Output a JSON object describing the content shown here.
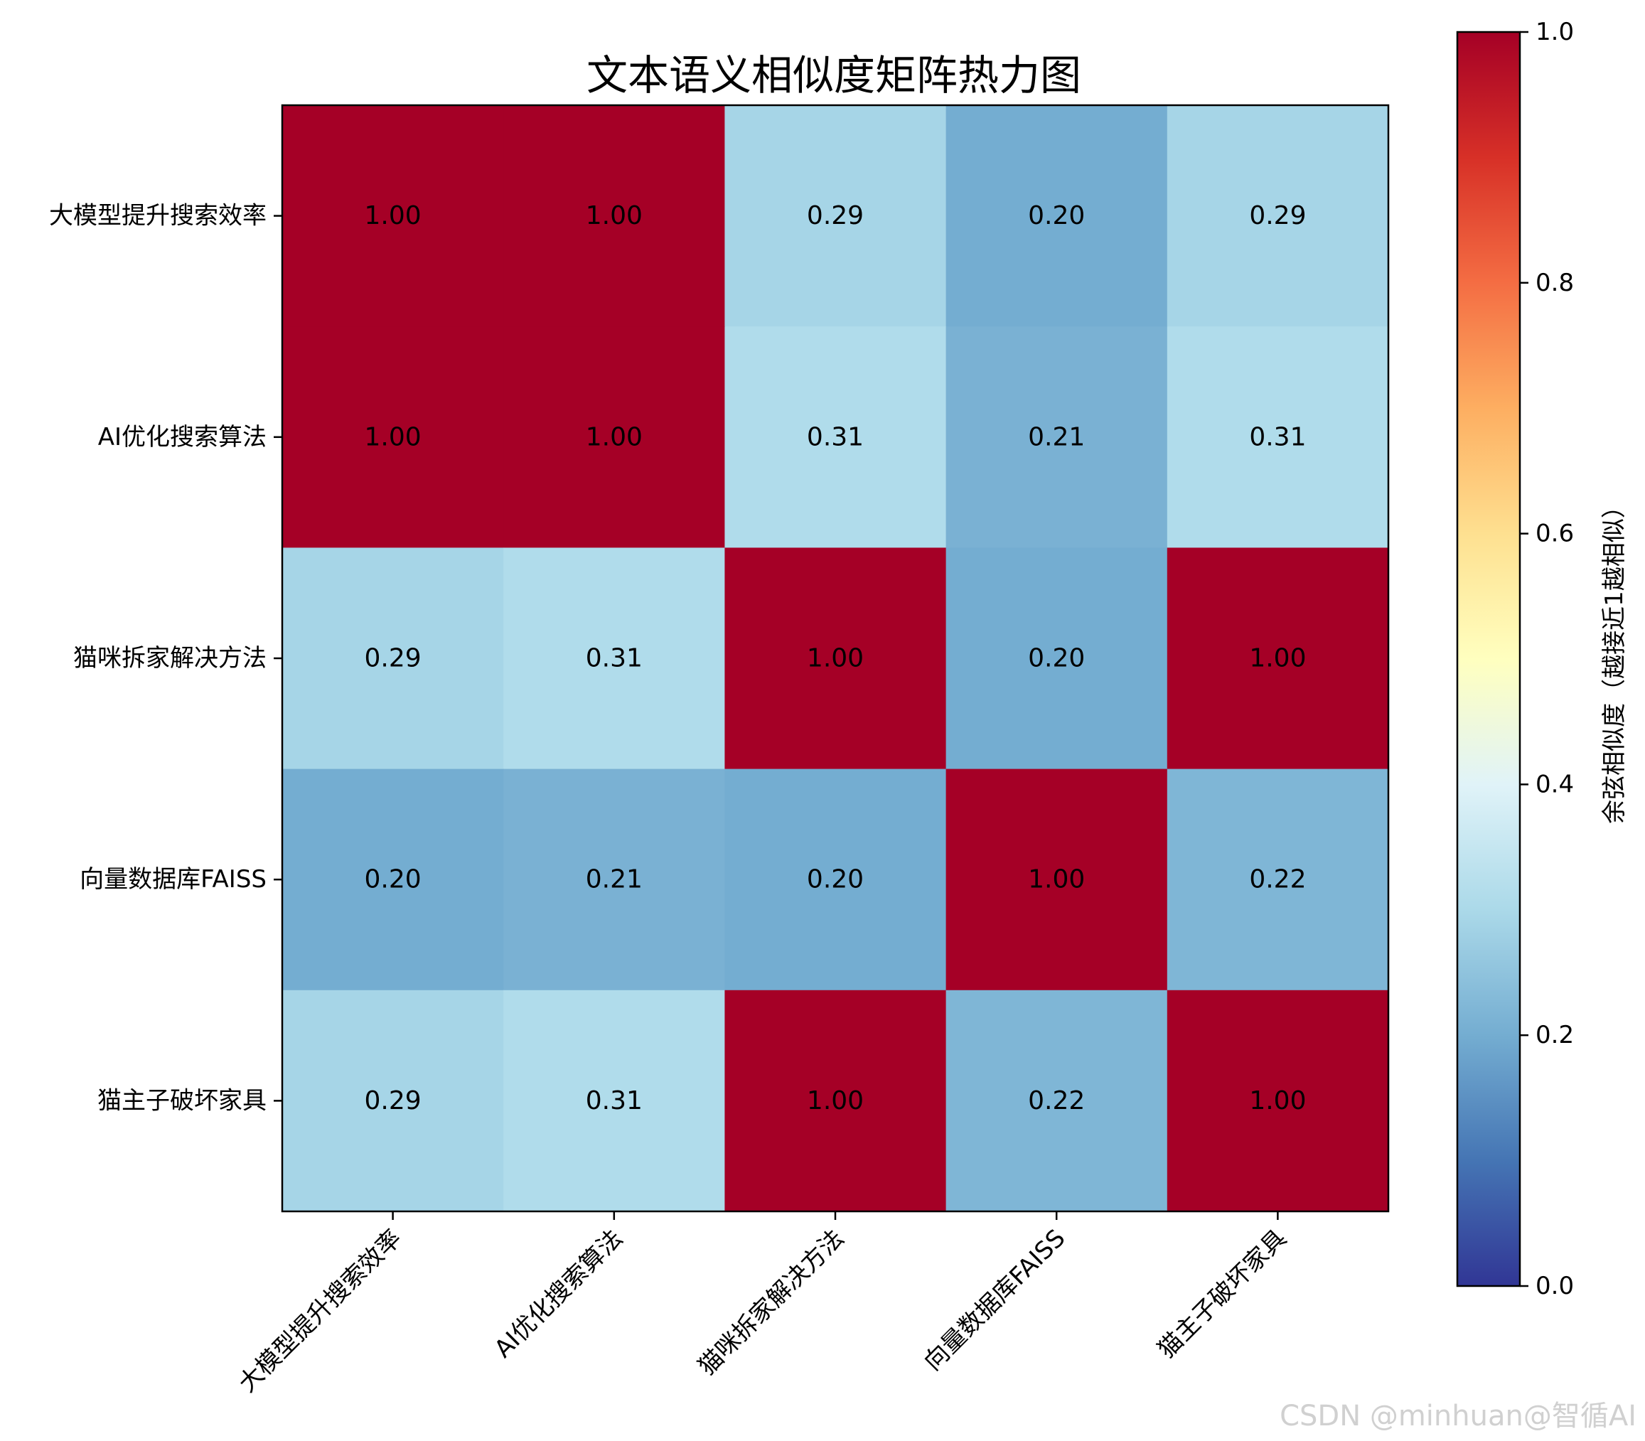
{
  "chart_data": {
    "type": "heatmap",
    "title": "文本语义相似度矩阵热力图",
    "x_labels": [
      "大模型提升搜索效率",
      "AI优化搜索算法",
      "猫咪拆家解决方法",
      "向量数据库FAISS",
      "猫主子破坏家具"
    ],
    "y_labels": [
      "大模型提升搜索效率",
      "AI优化搜索算法",
      "猫咪拆家解决方法",
      "向量数据库FAISS",
      "猫主子破坏家具"
    ],
    "values": [
      [
        1.0,
        1.0,
        0.29,
        0.2,
        0.29
      ],
      [
        1.0,
        1.0,
        0.31,
        0.21,
        0.31
      ],
      [
        0.29,
        0.31,
        1.0,
        0.2,
        1.0
      ],
      [
        0.2,
        0.21,
        0.2,
        1.0,
        0.22
      ],
      [
        0.29,
        0.31,
        1.0,
        0.22,
        1.0
      ]
    ],
    "value_format": "0.00",
    "colormap": "RdYlBu_r",
    "colorbar": {
      "label": "余弦相似度（越接近1越相似）",
      "range": [
        0.0,
        1.0
      ],
      "ticks": [
        0.0,
        0.2,
        0.4,
        0.6,
        0.8,
        1.0
      ],
      "tick_labels": [
        "0.0",
        "0.2",
        "0.4",
        "0.6",
        "0.8",
        "1.0"
      ]
    }
  },
  "watermark": "CSDN @minhuan@智循AI"
}
